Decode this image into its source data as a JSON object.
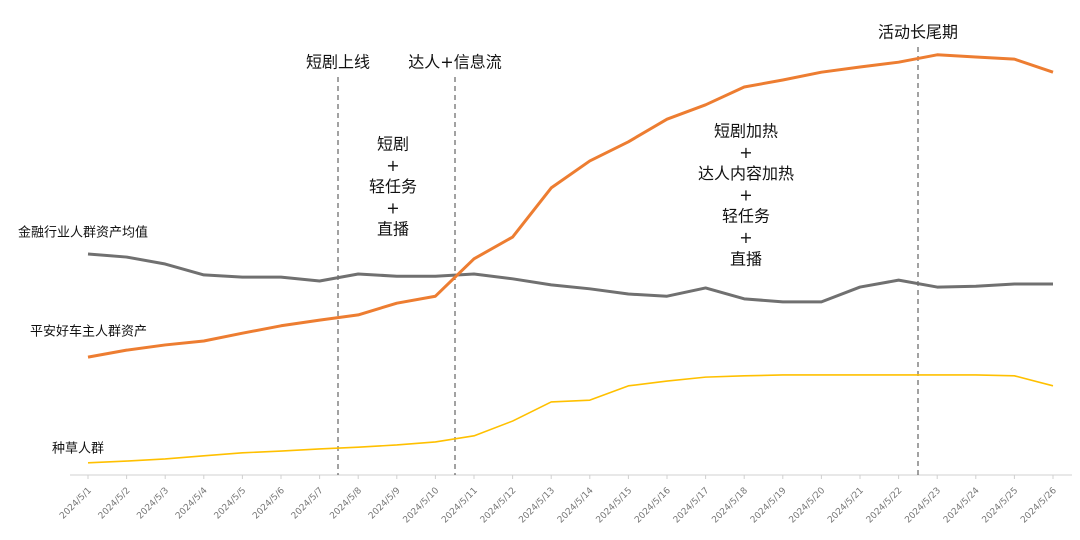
{
  "chart_data": {
    "type": "line",
    "categories": [
      "2024/5/1",
      "2024/5/2",
      "2024/5/3",
      "2024/5/4",
      "2024/5/5",
      "2024/5/6",
      "2024/5/7",
      "2024/5/8",
      "2024/5/9",
      "2024/5/10",
      "2024/5/11",
      "2024/5/12",
      "2024/5/13",
      "2024/5/14",
      "2024/5/15",
      "2024/5/16",
      "2024/5/17",
      "2024/5/18",
      "2024/5/19",
      "2024/5/20",
      "2024/5/21",
      "2024/5/22",
      "2024/5/23",
      "2024/5/24",
      "2024/5/25",
      "2024/5/26"
    ],
    "series": [
      {
        "name": "金融行业人群资产均值",
        "color": "#707070",
        "values": [
          50.8,
          50.1,
          48.5,
          46.0,
          45.5,
          45.5,
          44.6,
          46.2,
          45.7,
          45.7,
          46.2,
          45.1,
          43.7,
          42.8,
          41.6,
          41.1,
          43.0,
          40.5,
          39.8,
          39.8,
          43.2,
          44.8,
          43.2,
          43.4,
          43.9,
          43.9
        ]
      },
      {
        "name": "平安好车主人群资产",
        "color": "#ed7d31",
        "values": [
          27.1,
          28.7,
          29.9,
          30.8,
          32.6,
          34.3,
          35.6,
          36.8,
          39.5,
          41.1,
          49.7,
          54.7,
          66.0,
          72.2,
          76.6,
          81.8,
          85.1,
          89.2,
          90.8,
          92.6,
          93.8,
          94.9,
          96.6,
          96.1,
          95.6,
          92.6
        ]
      },
      {
        "name": "种草人群",
        "color": "#ffc000",
        "values": [
          2.8,
          3.2,
          3.7,
          4.4,
          5.1,
          5.5,
          6.0,
          6.4,
          6.9,
          7.6,
          9.0,
          12.4,
          16.8,
          17.2,
          20.5,
          21.6,
          22.5,
          22.8,
          23.0,
          23.0,
          23.0,
          23.0,
          23.0,
          23.0,
          22.8,
          20.5
        ]
      }
    ],
    "ylim": [
      0,
      100
    ],
    "annotations": [
      "短剧上线",
      "达人+信息流",
      "活动长尾期"
    ],
    "notes": [
      [
        "短剧",
        "+",
        "轻任务",
        "+",
        "直播"
      ],
      [
        "短剧加热",
        "+",
        "达人内容加热",
        "+",
        "轻任务",
        "+",
        "直播"
      ]
    ]
  }
}
